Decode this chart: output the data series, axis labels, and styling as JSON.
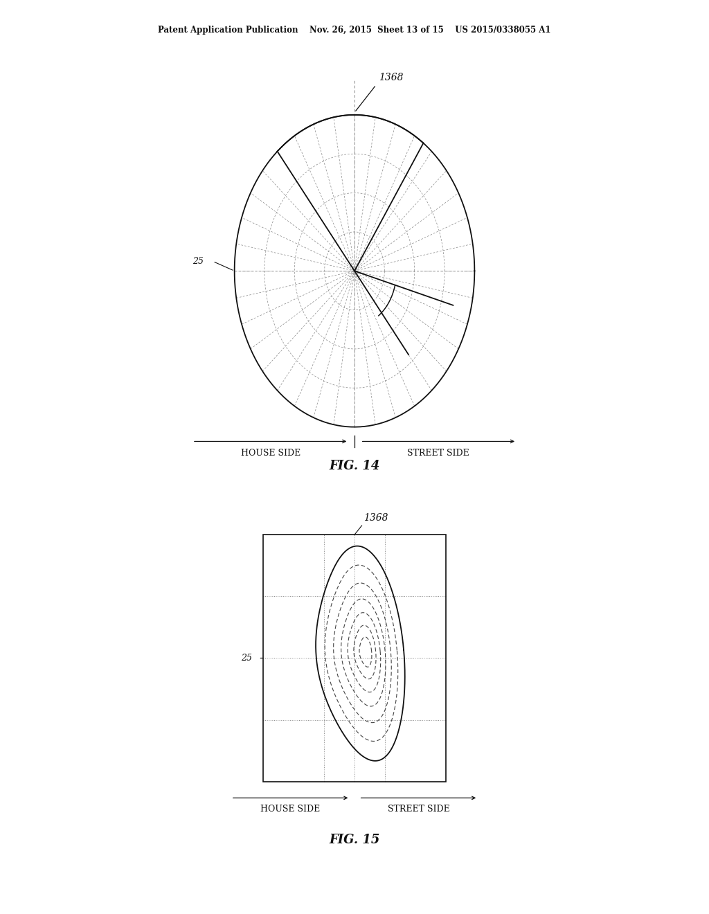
{
  "header_text": "Patent Application Publication    Nov. 26, 2015  Sheet 13 of 15    US 2015/0338055 A1",
  "fig14_label": "FIG. 14",
  "fig15_label": "FIG. 15",
  "label_1368": "1368",
  "label_25": "25",
  "label_house_side": "HOUSE SIDE",
  "label_street_side": "STREET SIDE",
  "bg_color": "#ffffff",
  "line_color": "#111111",
  "grid_color": "#888888"
}
